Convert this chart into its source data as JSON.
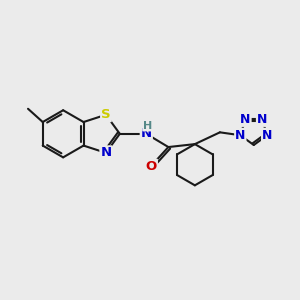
{
  "bg_color": "#ebebeb",
  "bond_color": "#1a1a1a",
  "line_width": 1.5,
  "atom_colors": {
    "S": "#cccc00",
    "N": "#0000cc",
    "O": "#cc0000",
    "H": "#558888",
    "C": "#1a1a1a"
  },
  "font_size_atom": 9.5,
  "figsize": [
    3.0,
    3.0
  ],
  "dpi": 100
}
